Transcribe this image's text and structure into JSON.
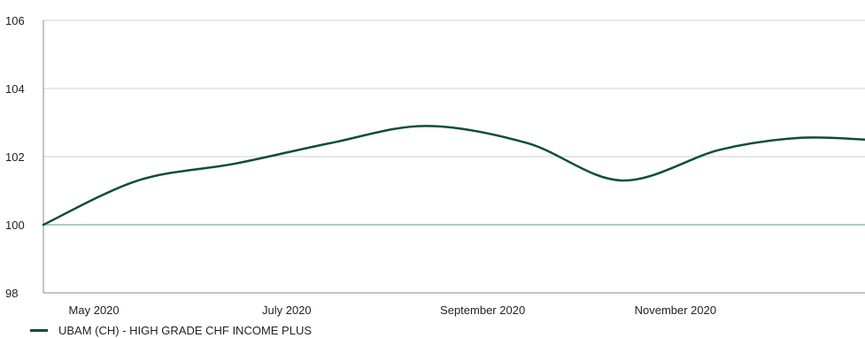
{
  "colors": {
    "series": "#0d4f36",
    "baseline": "#a9cfc2",
    "grid": "#cfcfcf",
    "axis": "#8a8a8a"
  },
  "chart_data": {
    "type": "line",
    "title": "",
    "xlabel": "",
    "ylabel": "",
    "ylim": [
      98,
      106
    ],
    "yticks": [
      98,
      100,
      102,
      104,
      106
    ],
    "baseline_value": 100,
    "grid": true,
    "legend_position": "bottom-left",
    "x_ticks": [
      {
        "label": "May 2020",
        "x": "2020-05-01"
      },
      {
        "label": "July 2020",
        "x": "2020-07-01"
      },
      {
        "label": "September 2020",
        "x": "2020-09-01"
      },
      {
        "label": "November 2020",
        "x": "2020-11-01"
      }
    ],
    "x_range": [
      "2020-04-15",
      "2020-12-31"
    ],
    "series": [
      {
        "name": "UBAM (CH) - HIGH GRADE CHF INCOME PLUS",
        "color": "#0d4f36",
        "points": [
          {
            "x": "2020-04-15",
            "y": 100.0
          },
          {
            "x": "2020-05-15",
            "y": 101.3
          },
          {
            "x": "2020-06-15",
            "y": 101.8
          },
          {
            "x": "2020-07-15",
            "y": 102.4
          },
          {
            "x": "2020-08-14",
            "y": 102.9
          },
          {
            "x": "2020-09-15",
            "y": 102.4
          },
          {
            "x": "2020-10-15",
            "y": 101.3
          },
          {
            "x": "2020-11-15",
            "y": 102.2
          },
          {
            "x": "2020-12-10",
            "y": 102.55
          },
          {
            "x": "2020-12-31",
            "y": 102.5
          }
        ]
      }
    ]
  }
}
